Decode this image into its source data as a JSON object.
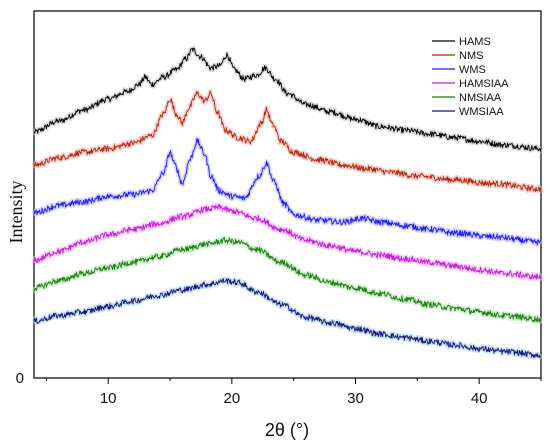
{
  "chart_data": {
    "type": "line",
    "xlabel": "2θ (°)",
    "ylabel": "Intensity",
    "xlim": [
      4,
      45
    ],
    "x_ticks": [
      10,
      20,
      30,
      40
    ],
    "y_ticks": [
      0
    ],
    "ylim": [
      0,
      10
    ],
    "grid": false,
    "legend_position": "top-right",
    "series": [
      {
        "name": "HAMS",
        "color": "#000000",
        "halo": "#c8c8c8",
        "points": [
          [
            4,
            6.7
          ],
          [
            6,
            7.0
          ],
          [
            8,
            7.3
          ],
          [
            10,
            7.6
          ],
          [
            11.5,
            7.8
          ],
          [
            12.5,
            8.0
          ],
          [
            13,
            8.2
          ],
          [
            13.5,
            8.0
          ],
          [
            14.5,
            8.2
          ],
          [
            15.5,
            8.4
          ],
          [
            16.3,
            8.7
          ],
          [
            16.8,
            8.95
          ],
          [
            17.5,
            8.75
          ],
          [
            18.3,
            8.45
          ],
          [
            19,
            8.5
          ],
          [
            19.6,
            8.8
          ],
          [
            20.2,
            8.4
          ],
          [
            21,
            8.15
          ],
          [
            22,
            8.25
          ],
          [
            22.7,
            8.45
          ],
          [
            23.5,
            8.15
          ],
          [
            24.5,
            7.75
          ],
          [
            26,
            7.45
          ],
          [
            28,
            7.25
          ],
          [
            30,
            7.05
          ],
          [
            32,
            6.85
          ],
          [
            34,
            6.75
          ],
          [
            36,
            6.65
          ],
          [
            38,
            6.55
          ],
          [
            40,
            6.45
          ],
          [
            42,
            6.35
          ],
          [
            45,
            6.25
          ]
        ]
      },
      {
        "name": "NMS",
        "color": "#b22a0e",
        "halo": "#f2b3b3",
        "points": [
          [
            4,
            5.8
          ],
          [
            6,
            6.0
          ],
          [
            8,
            6.15
          ],
          [
            10,
            6.25
          ],
          [
            12,
            6.4
          ],
          [
            13.5,
            6.6
          ],
          [
            14.5,
            7.2
          ],
          [
            15,
            7.6
          ],
          [
            15.5,
            7.2
          ],
          [
            16,
            6.95
          ],
          [
            16.5,
            7.35
          ],
          [
            17.2,
            7.75
          ],
          [
            17.8,
            7.55
          ],
          [
            18.3,
            7.75
          ],
          [
            18.8,
            7.25
          ],
          [
            19.5,
            6.75
          ],
          [
            20.5,
            6.55
          ],
          [
            21.5,
            6.45
          ],
          [
            22.4,
            6.95
          ],
          [
            22.8,
            7.3
          ],
          [
            23.3,
            6.9
          ],
          [
            24,
            6.45
          ],
          [
            25,
            6.15
          ],
          [
            27,
            5.95
          ],
          [
            29,
            5.8
          ],
          [
            31,
            5.7
          ],
          [
            33,
            5.6
          ],
          [
            35,
            5.5
          ],
          [
            38,
            5.4
          ],
          [
            41,
            5.3
          ],
          [
            45,
            5.15
          ]
        ]
      },
      {
        "name": "WMS",
        "color": "#1a1aff",
        "halo": "#b8b8ff",
        "points": [
          [
            4,
            4.5
          ],
          [
            6,
            4.7
          ],
          [
            8,
            4.8
          ],
          [
            10,
            4.95
          ],
          [
            12,
            5.0
          ],
          [
            13.5,
            5.1
          ],
          [
            14.5,
            5.6
          ],
          [
            15,
            6.15
          ],
          [
            15.4,
            5.8
          ],
          [
            16,
            5.3
          ],
          [
            16.6,
            5.95
          ],
          [
            17.2,
            6.45
          ],
          [
            17.8,
            6.1
          ],
          [
            18.3,
            5.5
          ],
          [
            19,
            5.1
          ],
          [
            20,
            4.95
          ],
          [
            21,
            4.9
          ],
          [
            22.2,
            5.5
          ],
          [
            22.8,
            5.85
          ],
          [
            23.4,
            5.35
          ],
          [
            24.2,
            4.75
          ],
          [
            25,
            4.45
          ],
          [
            27,
            4.3
          ],
          [
            29,
            4.25
          ],
          [
            30.5,
            4.35
          ],
          [
            32,
            4.25
          ],
          [
            34,
            4.15
          ],
          [
            36,
            4.05
          ],
          [
            38,
            3.95
          ],
          [
            41,
            3.85
          ],
          [
            45,
            3.7
          ]
        ]
      },
      {
        "name": "HAMSIAA",
        "color": "#c21cdc",
        "halo": "#f5b4f5",
        "points": [
          [
            4,
            3.2
          ],
          [
            6,
            3.45
          ],
          [
            8,
            3.7
          ],
          [
            10,
            3.9
          ],
          [
            12,
            4.05
          ],
          [
            14,
            4.2
          ],
          [
            16,
            4.4
          ],
          [
            18,
            4.6
          ],
          [
            19,
            4.65
          ],
          [
            20,
            4.55
          ],
          [
            22,
            4.35
          ],
          [
            24,
            4.05
          ],
          [
            26,
            3.75
          ],
          [
            28,
            3.6
          ],
          [
            30,
            3.45
          ],
          [
            32,
            3.35
          ],
          [
            34,
            3.25
          ],
          [
            36,
            3.15
          ],
          [
            38,
            3.05
          ],
          [
            40,
            2.95
          ],
          [
            42,
            2.85
          ],
          [
            45,
            2.75
          ]
        ]
      },
      {
        "name": "NMSIAA",
        "color": "#1d7d12",
        "halo": "#b5e6b5",
        "points": [
          [
            4,
            2.45
          ],
          [
            6,
            2.65
          ],
          [
            8,
            2.85
          ],
          [
            10,
            3.0
          ],
          [
            12,
            3.15
          ],
          [
            14,
            3.3
          ],
          [
            16,
            3.5
          ],
          [
            18,
            3.65
          ],
          [
            19.5,
            3.75
          ],
          [
            20.5,
            3.7
          ],
          [
            22,
            3.5
          ],
          [
            24,
            3.15
          ],
          [
            26,
            2.8
          ],
          [
            28,
            2.6
          ],
          [
            30,
            2.45
          ],
          [
            32,
            2.3
          ],
          [
            34,
            2.15
          ],
          [
            36,
            2.0
          ],
          [
            38,
            1.9
          ],
          [
            40,
            1.8
          ],
          [
            42,
            1.7
          ],
          [
            45,
            1.6
          ]
        ]
      },
      {
        "name": "WMSIAA",
        "color": "#16167d",
        "halo": "#a7d3e8",
        "points": [
          [
            4,
            1.55
          ],
          [
            6,
            1.7
          ],
          [
            8,
            1.8
          ],
          [
            10,
            1.95
          ],
          [
            12,
            2.1
          ],
          [
            14,
            2.25
          ],
          [
            16,
            2.4
          ],
          [
            18,
            2.55
          ],
          [
            19.5,
            2.65
          ],
          [
            20.5,
            2.6
          ],
          [
            22,
            2.35
          ],
          [
            24,
            2.0
          ],
          [
            26,
            1.65
          ],
          [
            28,
            1.5
          ],
          [
            30,
            1.35
          ],
          [
            32,
            1.2
          ],
          [
            34,
            1.1
          ],
          [
            36,
            1.0
          ],
          [
            38,
            0.9
          ],
          [
            40,
            0.8
          ],
          [
            42,
            0.72
          ],
          [
            45,
            0.62
          ]
        ]
      }
    ]
  }
}
